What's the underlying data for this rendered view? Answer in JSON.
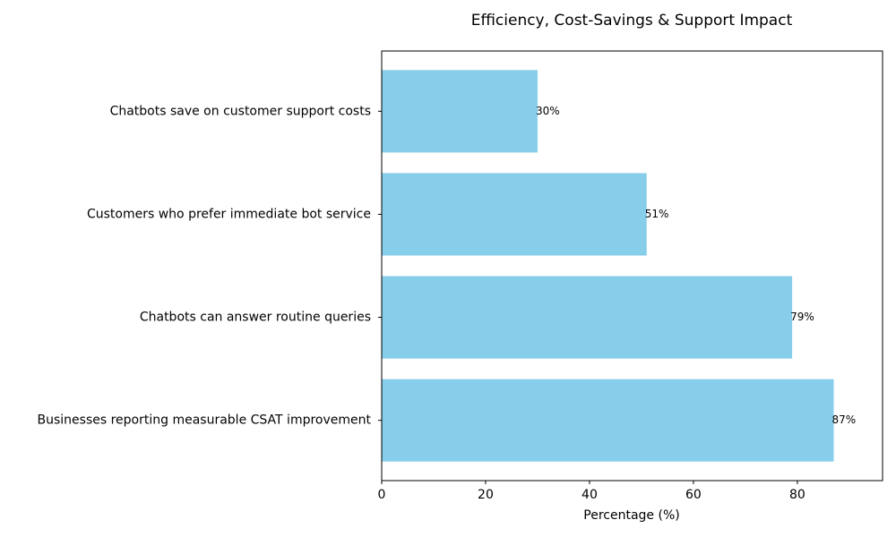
{
  "chart_data": {
    "type": "barh",
    "title": "Efficiency, Cost-Savings & Support Impact",
    "xlabel": "Percentage (%)",
    "categories": [
      "Chatbots save on customer support costs",
      "Customers who prefer immediate bot service",
      "Chatbots can answer routine queries",
      "Businesses reporting measurable CSAT improvement"
    ],
    "values": [
      30,
      51,
      79,
      87
    ],
    "value_labels": [
      "30%",
      "51%",
      "79%",
      "87%"
    ],
    "color": "#87ceeb",
    "xlim": [
      0,
      96.4
    ],
    "xticks": [
      0,
      20,
      40,
      60,
      80
    ]
  }
}
